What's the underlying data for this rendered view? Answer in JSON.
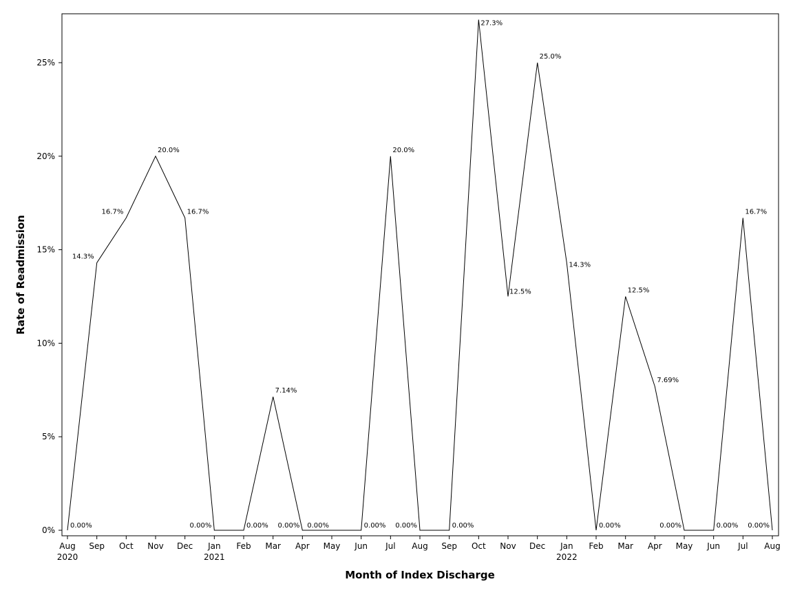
{
  "chart_data": {
    "type": "line",
    "title": "",
    "xlabel": "Month of Index Discharge",
    "ylabel": "Rate of Readmission",
    "ylim": [
      0,
      0.276
    ],
    "y_ticks": [
      0,
      0.05,
      0.1,
      0.15,
      0.2,
      0.25
    ],
    "y_tick_labels": [
      "0%",
      "5%",
      "10%",
      "15%",
      "20%",
      "25%"
    ],
    "grid": false,
    "legend": "none",
    "line_color": "#000000",
    "categories": [
      {
        "month": "Aug",
        "year": "2020"
      },
      {
        "month": "Sep",
        "year": ""
      },
      {
        "month": "Oct",
        "year": ""
      },
      {
        "month": "Nov",
        "year": ""
      },
      {
        "month": "Dec",
        "year": ""
      },
      {
        "month": "Jan",
        "year": "2021"
      },
      {
        "month": "Feb",
        "year": ""
      },
      {
        "month": "Mar",
        "year": ""
      },
      {
        "month": "Apr",
        "year": ""
      },
      {
        "month": "May",
        "year": ""
      },
      {
        "month": "Jun",
        "year": ""
      },
      {
        "month": "Jul",
        "year": ""
      },
      {
        "month": "Aug",
        "year": ""
      },
      {
        "month": "Sep",
        "year": ""
      },
      {
        "month": "Oct",
        "year": ""
      },
      {
        "month": "Nov",
        "year": ""
      },
      {
        "month": "Dec",
        "year": ""
      },
      {
        "month": "Jan",
        "year": "2022"
      },
      {
        "month": "Feb",
        "year": ""
      },
      {
        "month": "Mar",
        "year": ""
      },
      {
        "month": "Apr",
        "year": ""
      },
      {
        "month": "May",
        "year": ""
      },
      {
        "month": "Jun",
        "year": ""
      },
      {
        "month": "Jul",
        "year": ""
      },
      {
        "month": "Aug",
        "year": ""
      }
    ],
    "series": [
      {
        "values": [
          0,
          0.143,
          0.167,
          0.2,
          0.167,
          0,
          0,
          0.0714,
          0,
          0,
          0,
          0.2,
          0,
          0,
          0.273,
          0.125,
          0.25,
          0.143,
          0,
          0.125,
          0.0769,
          0,
          0,
          0.167,
          0
        ],
        "labels": [
          "0.00%",
          "14.3%",
          "16.7%",
          "20.0%",
          "16.7%",
          "0.00%",
          "0.00%",
          "7.14%",
          "0.00%",
          "0.00%",
          "0.00%",
          "20.0%",
          "0.00%",
          "0.00%",
          "27.3%",
          "12.5%",
          "25.0%",
          "14.3%",
          "0.00%",
          "12.5%",
          "7.69%",
          "0.00%",
          "0.00%",
          "16.7%",
          "0.00%"
        ]
      }
    ]
  }
}
